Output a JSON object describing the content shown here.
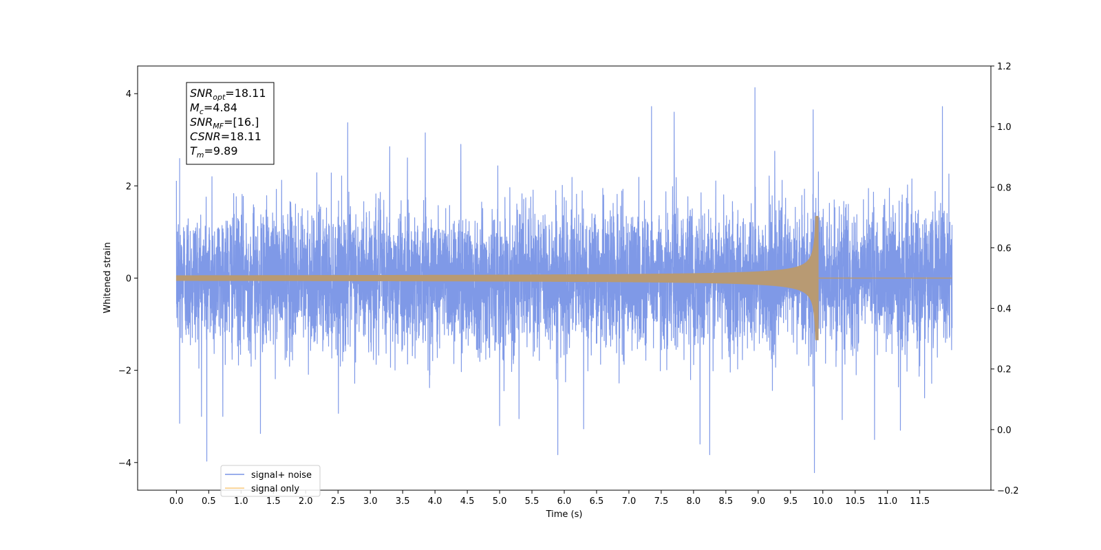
{
  "chart_data": {
    "type": "line",
    "xlabel": "Time (s)",
    "ylabel": "Whitened strain",
    "xlim": [
      -0.6,
      12.6
    ],
    "ylim": [
      -4.6,
      4.6
    ],
    "y2lim": [
      -0.2,
      1.2
    ],
    "x_ticks": [
      0.0,
      0.5,
      1.0,
      1.5,
      2.0,
      2.5,
      3.0,
      3.5,
      4.0,
      4.5,
      5.0,
      5.5,
      6.0,
      6.5,
      7.0,
      7.5,
      8.0,
      8.5,
      9.0,
      9.5,
      10.0,
      10.5,
      11.0,
      11.5
    ],
    "x_tick_labels": [
      "0.0",
      "0.5",
      "1.0",
      "1.5",
      "2.0",
      "2.5",
      "3.0",
      "3.5",
      "4.0",
      "4.5",
      "5.0",
      "5.5",
      "6.0",
      "6.5",
      "7.0",
      "7.5",
      "8.0",
      "8.5",
      "9.0",
      "9.5",
      "10.0",
      "10.5",
      "11.0",
      "11.5"
    ],
    "y_ticks": [
      -4,
      -2,
      0,
      2,
      4
    ],
    "y_tick_labels": [
      "−4",
      "−2",
      "0",
      "2",
      "4"
    ],
    "y2_ticks": [
      -0.2,
      0.0,
      0.2,
      0.4,
      0.6,
      0.8,
      1.0,
      1.2
    ],
    "y2_tick_labels": [
      "−0.2",
      "0.0",
      "0.2",
      "0.4",
      "0.6",
      "0.8",
      "1.0",
      "1.2"
    ],
    "grid": false,
    "legend_position": "lower-left",
    "series": [
      {
        "name": "signal+ noise",
        "color": "#7894e6",
        "x_range": [
          0.0,
          12.0
        ],
        "noise_std": 0.95,
        "extremes": [
          {
            "x": 0.05,
            "y": 2.6
          },
          {
            "x": 0.05,
            "y": -3.15
          },
          {
            "x": 0.47,
            "y": -3.97
          },
          {
            "x": 0.55,
            "y": 2.2
          },
          {
            "x": 1.3,
            "y": -3.37
          },
          {
            "x": 2.65,
            "y": 3.37
          },
          {
            "x": 3.3,
            "y": 2.85
          },
          {
            "x": 3.85,
            "y": 3.15
          },
          {
            "x": 4.4,
            "y": 2.9
          },
          {
            "x": 5.0,
            "y": -3.2
          },
          {
            "x": 5.3,
            "y": -3.05
          },
          {
            "x": 5.9,
            "y": -3.83
          },
          {
            "x": 6.3,
            "y": -3.27
          },
          {
            "x": 7.35,
            "y": 3.72
          },
          {
            "x": 7.7,
            "y": 3.6
          },
          {
            "x": 8.1,
            "y": -3.6
          },
          {
            "x": 8.25,
            "y": -3.83
          },
          {
            "x": 8.95,
            "y": 4.13
          },
          {
            "x": 9.85,
            "y": 3.65
          },
          {
            "x": 9.87,
            "y": -4.22
          },
          {
            "x": 10.3,
            "y": -3.07
          },
          {
            "x": 10.8,
            "y": -3.5
          },
          {
            "x": 11.2,
            "y": -3.3
          },
          {
            "x": 11.85,
            "y": 3.72
          }
        ]
      },
      {
        "name": "signal only",
        "color": "#f5a623",
        "x_range": [
          0.0,
          12.0
        ],
        "merger_time": 9.89,
        "amplitude_start": 0.05,
        "amplitude_peak": 1.75
      }
    ],
    "annotation": [
      {
        "base": "SNR",
        "sub": "opt",
        "value": "=18.11"
      },
      {
        "base": "M",
        "sub": "c",
        "value": "=4.84"
      },
      {
        "base": "SNR",
        "sub": "MF",
        "value": "=[16.]"
      },
      {
        "base": "CSNR",
        "sub": "",
        "value": "=18.11"
      },
      {
        "base": "T",
        "sub": "m",
        "value": "=9.89"
      }
    ]
  }
}
